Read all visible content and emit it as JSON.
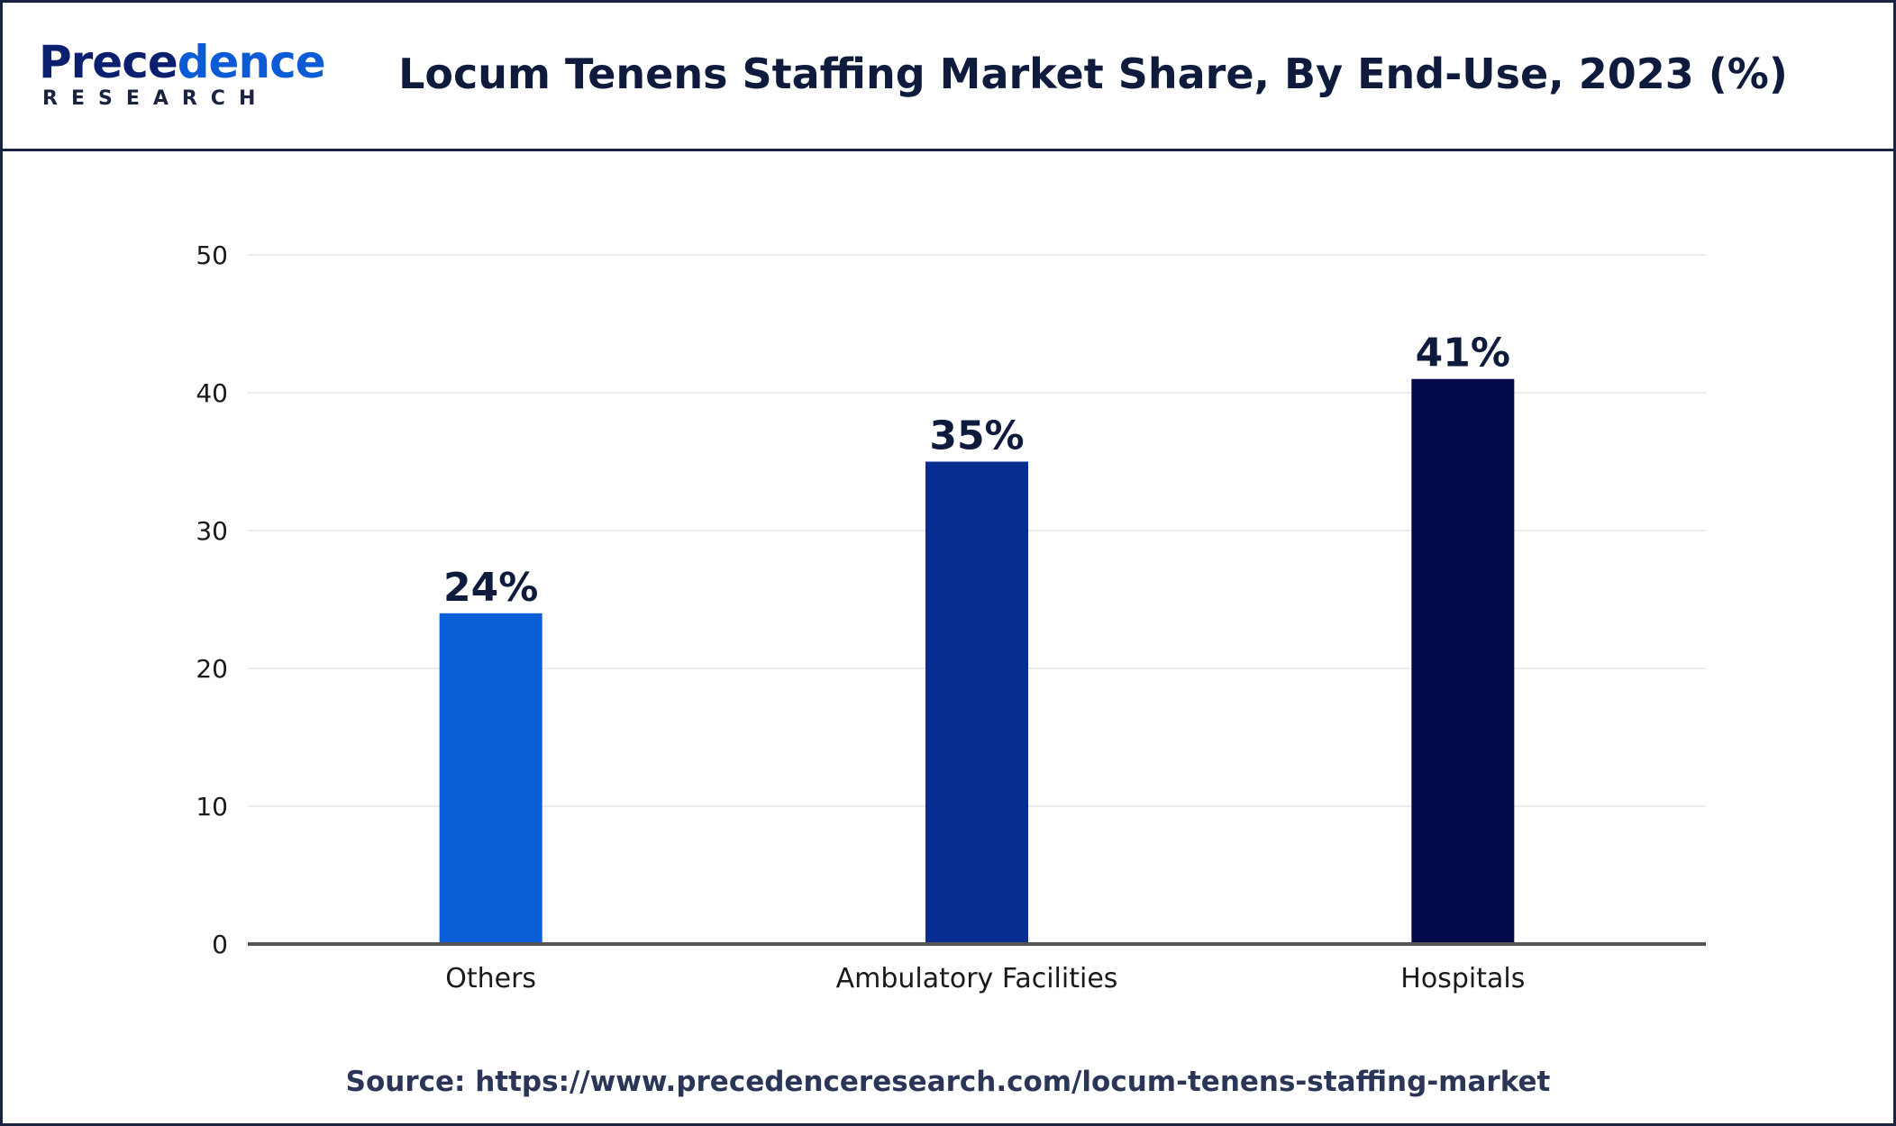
{
  "logo": {
    "word_main": "Prece",
    "word_tail": "dence",
    "sub": "RESEARCH"
  },
  "title": "Locum Tenens Staffing Market Share, By End-Use, 2023 (%)",
  "source": "Source: https://www.precedenceresearch.com/locum-tenens-staffing-market",
  "chart_data": {
    "type": "bar",
    "title": "Locum Tenens Staffing Market Share, By End-Use, 2023 (%)",
    "xlabel": "",
    "ylabel": "",
    "categories": [
      "Others",
      "Ambulatory Facilities",
      "Hospitals"
    ],
    "values": [
      24,
      35,
      41
    ],
    "data_labels": [
      "24%",
      "35%",
      "41%"
    ],
    "colors": [
      "#0a5fd8",
      "#062d8f",
      "#050a4a"
    ],
    "ylim": [
      0,
      50
    ],
    "yticks": [
      0,
      10,
      20,
      30,
      40,
      50
    ],
    "grid": true,
    "legend": "none"
  }
}
